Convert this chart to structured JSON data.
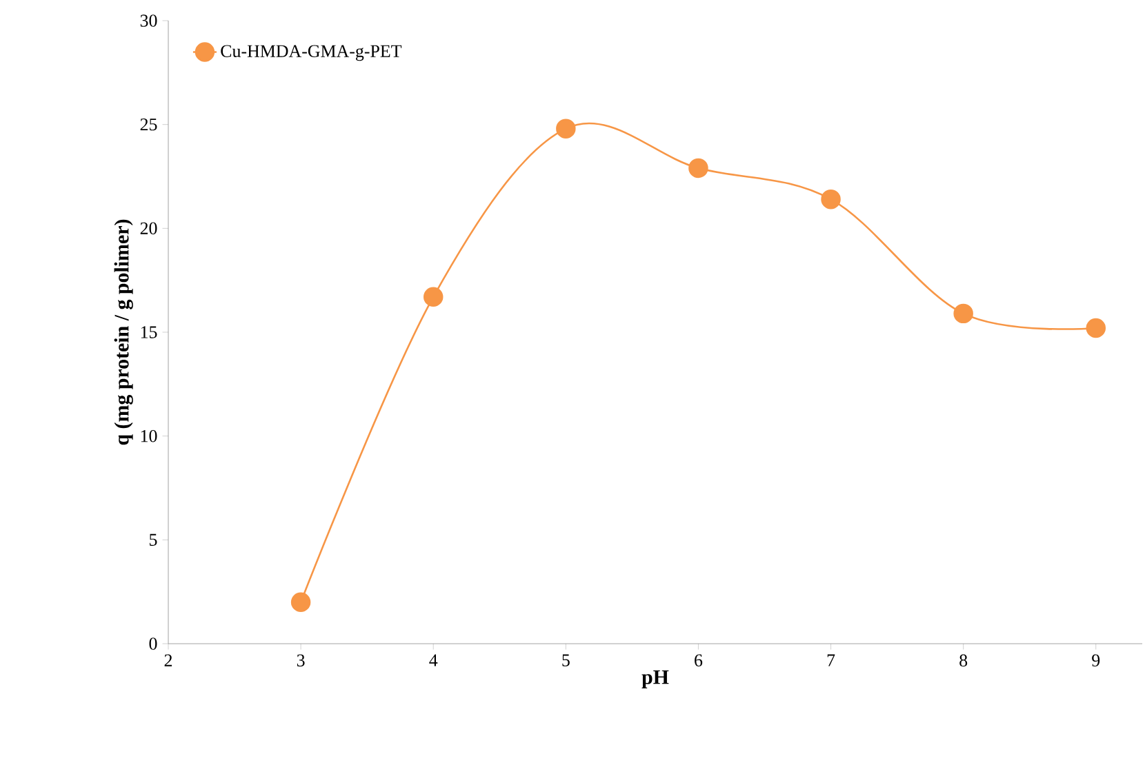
{
  "chart_data": {
    "type": "line",
    "xlabel": "pH",
    "ylabel": "q (mg protein / g polimer)",
    "x": [
      3,
      4,
      5,
      6,
      7,
      8,
      9
    ],
    "series": [
      {
        "name": "Cu-HMDA-GMA-g-PET",
        "color": "#f79646",
        "values": [
          2.0,
          16.7,
          24.8,
          22.9,
          21.4,
          15.9,
          15.2
        ]
      }
    ],
    "xlim": [
      2,
      9.35
    ],
    "xticks": [
      2,
      3,
      4,
      5,
      6,
      7,
      8,
      9
    ],
    "ylim": [
      0,
      30
    ],
    "yticks": [
      0,
      5,
      10,
      15,
      20,
      25,
      30
    ],
    "legend": "top left",
    "marker": "circle",
    "grid": false
  }
}
